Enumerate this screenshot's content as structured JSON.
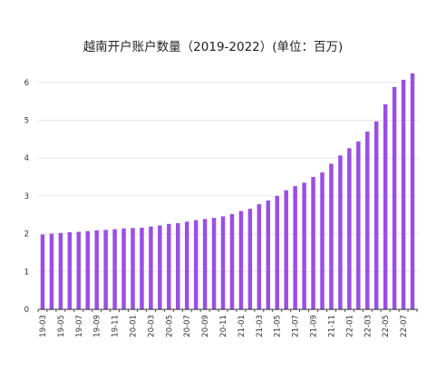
{
  "chart_data": {
    "type": "bar",
    "title": "越南开户账户数量（2019-2022）(单位：百万)",
    "xlabel": "",
    "ylabel": "",
    "ylim": [
      0,
      6.5
    ],
    "yticks": [
      0,
      1,
      2,
      3,
      4,
      5,
      6
    ],
    "grid": true,
    "legend": "none",
    "bar_color": "#9b4ee6",
    "categories": [
      "19-03",
      "19-04",
      "19-05",
      "19-06",
      "19-07",
      "19-08",
      "19-09",
      "19-10",
      "19-11",
      "19-12",
      "20-01",
      "20-02",
      "20-03",
      "20-04",
      "20-05",
      "20-06",
      "20-07",
      "20-08",
      "20-09",
      "20-10",
      "20-11",
      "20-12",
      "21-01",
      "21-02",
      "21-03",
      "21-04",
      "21-05",
      "21-06",
      "21-07",
      "21-08",
      "21-09",
      "21-10",
      "21-11",
      "21-12",
      "22-01",
      "22-02",
      "22-03",
      "22-04",
      "22-05",
      "22-06",
      "22-07",
      "22-08"
    ],
    "tick_labels": [
      "19-03",
      "19-05",
      "19-07",
      "19-09",
      "19-11",
      "20-01",
      "20-03",
      "20-05",
      "20-07",
      "20-09",
      "20-11",
      "21-01",
      "21-03",
      "21-05",
      "21-07",
      "21-09",
      "21-11",
      "22-01",
      "22-03",
      "22-05",
      "22-07"
    ],
    "values": [
      1.98,
      2.0,
      2.02,
      2.04,
      2.05,
      2.07,
      2.09,
      2.1,
      2.12,
      2.14,
      2.15,
      2.16,
      2.19,
      2.22,
      2.26,
      2.28,
      2.32,
      2.36,
      2.39,
      2.42,
      2.46,
      2.52,
      2.6,
      2.66,
      2.78,
      2.88,
      3.0,
      3.15,
      3.26,
      3.35,
      3.5,
      3.62,
      3.85,
      4.07,
      4.26,
      4.44,
      4.7,
      4.97,
      5.42,
      5.88,
      6.07,
      6.24
    ]
  }
}
